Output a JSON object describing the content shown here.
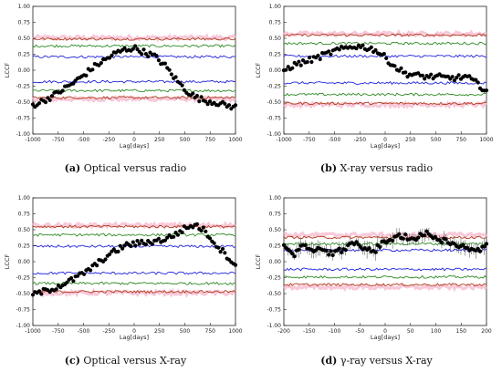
{
  "panels": [
    {
      "id": "a",
      "caption_letter": "(a)",
      "caption_text": "Optical versus radio",
      "xlabel": "Lag[days]",
      "ylabel": "LCCF",
      "x_ticks": [
        "-1000",
        "-750",
        "-500",
        "-250",
        "0",
        "250",
        "500",
        "750",
        "1000"
      ],
      "y_ticks": [
        "-1.00",
        "-0.75",
        "-0.50",
        "-0.25",
        "0.00",
        "0.25",
        "0.50",
        "0.75",
        "1.00"
      ]
    },
    {
      "id": "b",
      "caption_letter": "(b)",
      "caption_text": "X-ray versus radio",
      "xlabel": "Lag[days]",
      "ylabel": "LCCF",
      "x_ticks": [
        "-1000",
        "-750",
        "-500",
        "-250",
        "0",
        "250",
        "500",
        "750",
        "1000"
      ],
      "y_ticks": [
        "-1.00",
        "-0.75",
        "-0.50",
        "-0.25",
        "0.00",
        "0.25",
        "0.50",
        "0.75",
        "1.00"
      ]
    },
    {
      "id": "c",
      "caption_letter": "(c)",
      "caption_text": "Optical versus X-ray",
      "xlabel": "Lag[days]",
      "ylabel": "LCCF",
      "x_ticks": [
        "-1000",
        "-750",
        "-500",
        "-250",
        "0",
        "250",
        "500",
        "750",
        "1000"
      ],
      "y_ticks": [
        "-1.00",
        "-0.75",
        "-0.50",
        "-0.25",
        "0.00",
        "0.25",
        "0.50",
        "0.75",
        "1.00"
      ]
    },
    {
      "id": "d",
      "caption_letter": "(d)",
      "caption_text": "γ-ray versus X-ray",
      "xlabel": "Lag[days]",
      "ylabel": "LCCF",
      "x_ticks": [
        "-200",
        "-150",
        "-100",
        "-50",
        "0",
        "50",
        "100",
        "150",
        "200"
      ],
      "y_ticks": [
        "-1.00",
        "-0.75",
        "-0.50",
        "-0.25",
        "0.00",
        "0.25",
        "0.50",
        "0.75",
        "1.00"
      ]
    }
  ],
  "chart_data": [
    {
      "type": "scatter",
      "panel": "a",
      "xlabel": "Lag[days]",
      "ylabel": "LCCF",
      "xlim": [
        -1000,
        1000
      ],
      "ylim": [
        -1.0,
        1.0
      ],
      "significance_levels": [
        {
          "name": "1-sigma",
          "color": "#2222dd",
          "upper": 0.21,
          "lower": -0.18
        },
        {
          "name": "2-sigma",
          "color": "#2e8b22",
          "upper": 0.38,
          "lower": -0.32
        },
        {
          "name": "3-sigma",
          "color": "#b03a1a",
          "upper": 0.49,
          "lower": -0.43
        },
        {
          "name": "band",
          "color": "#f6b6cc",
          "upper": 0.51,
          "lower": -0.45
        }
      ],
      "correlation": {
        "x": [
          -1000,
          -900,
          -800,
          -700,
          -600,
          -500,
          -400,
          -300,
          -200,
          -100,
          0,
          100,
          200,
          300,
          400,
          500,
          600,
          700,
          800,
          900,
          1000
        ],
        "y": [
          -0.55,
          -0.48,
          -0.4,
          -0.3,
          -0.2,
          -0.08,
          0.05,
          0.15,
          0.25,
          0.32,
          0.35,
          0.28,
          0.22,
          0.08,
          -0.12,
          -0.3,
          -0.42,
          -0.48,
          -0.5,
          -0.55,
          -0.58
        ]
      }
    },
    {
      "type": "scatter",
      "panel": "b",
      "xlabel": "Lag[days]",
      "ylabel": "LCCF",
      "xlim": [
        -1000,
        1000
      ],
      "ylim": [
        -1.0,
        1.0
      ],
      "significance_levels": [
        {
          "name": "1-sigma",
          "color": "#2222dd",
          "upper": 0.22,
          "lower": -0.2
        },
        {
          "name": "2-sigma",
          "color": "#2e8b22",
          "upper": 0.42,
          "lower": -0.38
        },
        {
          "name": "3-sigma",
          "color": "#b03a1a",
          "upper": 0.55,
          "lower": -0.52
        },
        {
          "name": "band",
          "color": "#f6b6cc",
          "upper": 0.57,
          "lower": -0.54
        }
      ],
      "correlation": {
        "x": [
          -1000,
          -900,
          -800,
          -700,
          -600,
          -500,
          -400,
          -300,
          -200,
          -100,
          0,
          100,
          200,
          300,
          400,
          500,
          600,
          700,
          800,
          900,
          1000
        ],
        "y": [
          0.0,
          0.08,
          0.13,
          0.18,
          0.24,
          0.3,
          0.34,
          0.38,
          0.36,
          0.32,
          0.2,
          0.05,
          -0.05,
          -0.08,
          -0.1,
          -0.1,
          -0.12,
          -0.12,
          -0.1,
          -0.2,
          -0.32
        ]
      }
    },
    {
      "type": "scatter",
      "panel": "c",
      "xlabel": "Lag[days]",
      "ylabel": "LCCF",
      "xlim": [
        -1000,
        1000
      ],
      "ylim": [
        -1.0,
        1.0
      ],
      "significance_levels": [
        {
          "name": "1-sigma",
          "color": "#2222dd",
          "upper": 0.24,
          "lower": -0.18
        },
        {
          "name": "2-sigma",
          "color": "#2e8b22",
          "upper": 0.42,
          "lower": -0.34
        },
        {
          "name": "3-sigma",
          "color": "#b03a1a",
          "upper": 0.55,
          "lower": -0.47
        },
        {
          "name": "band",
          "color": "#f6b6cc",
          "upper": 0.57,
          "lower": -0.49
        }
      ],
      "correlation": {
        "x": [
          -1000,
          -900,
          -800,
          -700,
          -600,
          -500,
          -400,
          -300,
          -200,
          -100,
          0,
          100,
          200,
          300,
          400,
          500,
          600,
          700,
          800,
          900,
          1000
        ],
        "y": [
          -0.52,
          -0.47,
          -0.42,
          -0.35,
          -0.28,
          -0.18,
          -0.08,
          0.05,
          0.15,
          0.25,
          0.28,
          0.3,
          0.32,
          0.35,
          0.42,
          0.52,
          0.58,
          0.48,
          0.28,
          0.12,
          -0.05
        ]
      }
    },
    {
      "type": "scatter",
      "panel": "d",
      "xlabel": "Lag[days]",
      "ylabel": "LCCF",
      "xlim": [
        -200,
        200
      ],
      "ylim": [
        -1.0,
        1.0
      ],
      "error_bars": true,
      "significance_levels": [
        {
          "name": "1-sigma",
          "color": "#2222dd",
          "upper": 0.18,
          "lower": -0.12
        },
        {
          "name": "2-sigma",
          "color": "#2e8b22",
          "upper": 0.28,
          "lower": -0.24
        },
        {
          "name": "3-sigma",
          "color": "#b03a1a",
          "upper": 0.38,
          "lower": -0.36
        },
        {
          "name": "band",
          "color": "#f6b6cc",
          "upper": 0.42,
          "lower": -0.4
        }
      ],
      "correlation": {
        "x": [
          -200,
          -180,
          -160,
          -140,
          -120,
          -100,
          -80,
          -60,
          -40,
          -20,
          0,
          20,
          40,
          60,
          80,
          100,
          120,
          140,
          160,
          180,
          200
        ],
        "y": [
          0.22,
          0.1,
          0.25,
          0.2,
          0.15,
          0.12,
          0.22,
          0.28,
          0.2,
          0.18,
          0.32,
          0.38,
          0.4,
          0.35,
          0.45,
          0.38,
          0.32,
          0.28,
          0.22,
          0.15,
          0.3
        ]
      }
    }
  ]
}
